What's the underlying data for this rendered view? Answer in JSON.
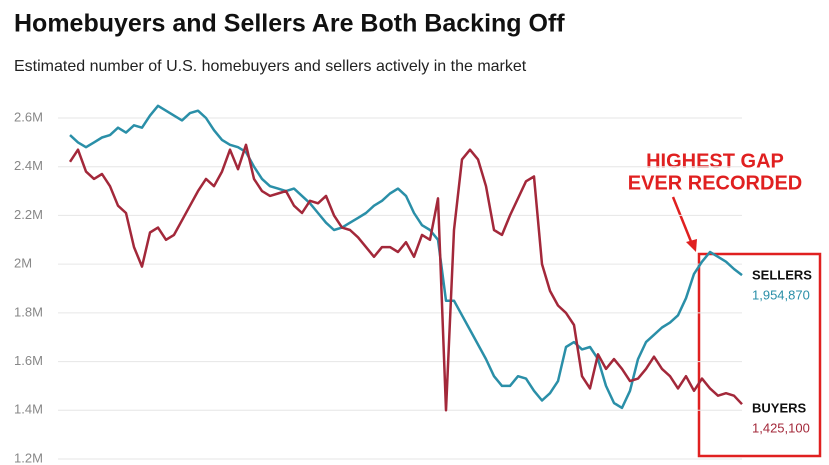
{
  "chart_data": {
    "type": "line",
    "title": "Homebuyers and Sellers Are Both Backing Off",
    "subtitle": "Estimated number of U.S. homebuyers and sellers actively in the market",
    "annotation": [
      "HIGHEST GAP",
      "EVER RECORDED"
    ],
    "ylim": [
      1200000,
      2600000
    ],
    "yticks": [
      {
        "value": 1200000,
        "label": "1.2M"
      },
      {
        "value": 1400000,
        "label": "1.4M"
      },
      {
        "value": 1600000,
        "label": "1.6M"
      },
      {
        "value": 1800000,
        "label": "1.8M"
      },
      {
        "value": 2000000,
        "label": "2M"
      },
      {
        "value": 2200000,
        "label": "2.2M"
      },
      {
        "value": 2400000,
        "label": "2.4M"
      },
      {
        "value": 2600000,
        "label": "2.6M"
      }
    ],
    "grid": true,
    "series": [
      {
        "name": "SELLERS",
        "color": "#2a8fa8",
        "values": [
          2530000,
          2500000,
          2480000,
          2500000,
          2520000,
          2530000,
          2560000,
          2540000,
          2570000,
          2560000,
          2610000,
          2650000,
          2630000,
          2610000,
          2590000,
          2620000,
          2630000,
          2600000,
          2550000,
          2510000,
          2490000,
          2480000,
          2460000,
          2400000,
          2350000,
          2320000,
          2310000,
          2300000,
          2310000,
          2280000,
          2250000,
          2210000,
          2170000,
          2140000,
          2150000,
          2170000,
          2190000,
          2210000,
          2240000,
          2260000,
          2290000,
          2310000,
          2280000,
          2210000,
          2160000,
          2140000,
          2100000,
          1850000,
          1850000,
          1790000,
          1730000,
          1670000,
          1610000,
          1540000,
          1500000,
          1500000,
          1540000,
          1530000,
          1480000,
          1440000,
          1470000,
          1520000,
          1660000,
          1680000,
          1650000,
          1660000,
          1610000,
          1500000,
          1430000,
          1410000,
          1480000,
          1610000,
          1680000,
          1710000,
          1740000,
          1760000,
          1790000,
          1860000,
          1960000,
          2010000,
          2050000,
          2030000,
          2010000,
          1980000,
          1954870
        ],
        "value_labels": [
          null,
          null,
          null,
          null,
          null,
          null,
          null,
          null,
          null,
          null,
          null,
          null,
          null,
          null,
          null,
          null,
          null,
          null,
          null,
          null,
          null,
          null,
          null,
          null,
          null,
          null,
          null,
          null,
          null,
          null,
          null,
          null,
          null,
          null,
          null,
          null,
          null,
          null,
          null,
          null,
          null,
          null,
          null,
          null,
          null,
          null,
          null,
          null,
          null,
          null,
          null,
          null,
          null,
          null,
          null,
          null,
          null,
          null,
          null,
          null,
          null,
          null,
          null,
          null,
          null,
          null,
          null,
          null,
          null,
          null,
          null,
          null,
          null,
          null,
          null,
          null,
          null,
          null,
          null,
          null,
          null,
          null,
          null,
          null,
          "1,954,870"
        ]
      },
      {
        "name": "BUYERS",
        "color": "#a3283a",
        "values": [
          2420000,
          2470000,
          2380000,
          2350000,
          2370000,
          2320000,
          2240000,
          2210000,
          2070000,
          1990000,
          2130000,
          2150000,
          2100000,
          2120000,
          2180000,
          2240000,
          2300000,
          2350000,
          2320000,
          2380000,
          2470000,
          2390000,
          2490000,
          2350000,
          2300000,
          2280000,
          2290000,
          2300000,
          2240000,
          2210000,
          2260000,
          2250000,
          2280000,
          2200000,
          2150000,
          2140000,
          2110000,
          2070000,
          2030000,
          2070000,
          2070000,
          2050000,
          2090000,
          2030000,
          2120000,
          2100000,
          2270000,
          1400000,
          2140000,
          2430000,
          2470000,
          2430000,
          2320000,
          2140000,
          2120000,
          2200000,
          2270000,
          2340000,
          2360000,
          2000000,
          1890000,
          1830000,
          1800000,
          1750000,
          1540000,
          1490000,
          1630000,
          1570000,
          1610000,
          1570000,
          1520000,
          1530000,
          1570000,
          1620000,
          1570000,
          1540000,
          1490000,
          1540000,
          1480000,
          1530000,
          1490000,
          1460000,
          1470000,
          1460000,
          1425100
        ],
        "value_labels": [
          null,
          null,
          null,
          null,
          null,
          null,
          null,
          null,
          null,
          null,
          null,
          null,
          null,
          null,
          null,
          null,
          null,
          null,
          null,
          null,
          null,
          null,
          null,
          null,
          null,
          null,
          null,
          null,
          null,
          null,
          null,
          null,
          null,
          null,
          null,
          null,
          null,
          null,
          null,
          null,
          null,
          null,
          null,
          null,
          null,
          null,
          null,
          null,
          null,
          null,
          null,
          null,
          null,
          null,
          null,
          null,
          null,
          null,
          null,
          null,
          null,
          null,
          null,
          null,
          null,
          null,
          null,
          null,
          null,
          null,
          null,
          null,
          null,
          null,
          null,
          null,
          null,
          null,
          null,
          null,
          null,
          null,
          null,
          null,
          "1,425,100"
        ]
      }
    ]
  }
}
